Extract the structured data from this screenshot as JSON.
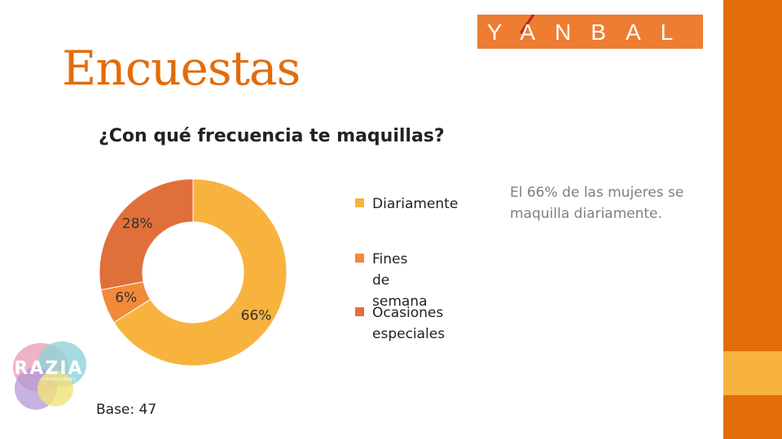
{
  "slide": {
    "title": "Encuestas",
    "note": "El 66% de las mujeres se maquilla diariamente.",
    "base": "Base: 47"
  },
  "brand": {
    "logo_text": "YANBAL",
    "partner_logo_text": "RAZIA",
    "partner_logo_subtext": "COMUNICACIONES",
    "accent_color": "#e36c0a",
    "accent_light_color": "#f8b33f"
  },
  "chart_data": {
    "type": "pie",
    "style": "donut",
    "title": "¿Con qué frecuencia te maquillas?",
    "categories": [
      "Diariamente",
      "Fines de semana",
      "Ocasiones especiales"
    ],
    "values": [
      66,
      6,
      28
    ],
    "data_labels": [
      "66%",
      "6%",
      "28%"
    ],
    "colors": [
      "#f8b33f",
      "#f38a3a",
      "#e0703a"
    ],
    "legend_position": "right"
  }
}
